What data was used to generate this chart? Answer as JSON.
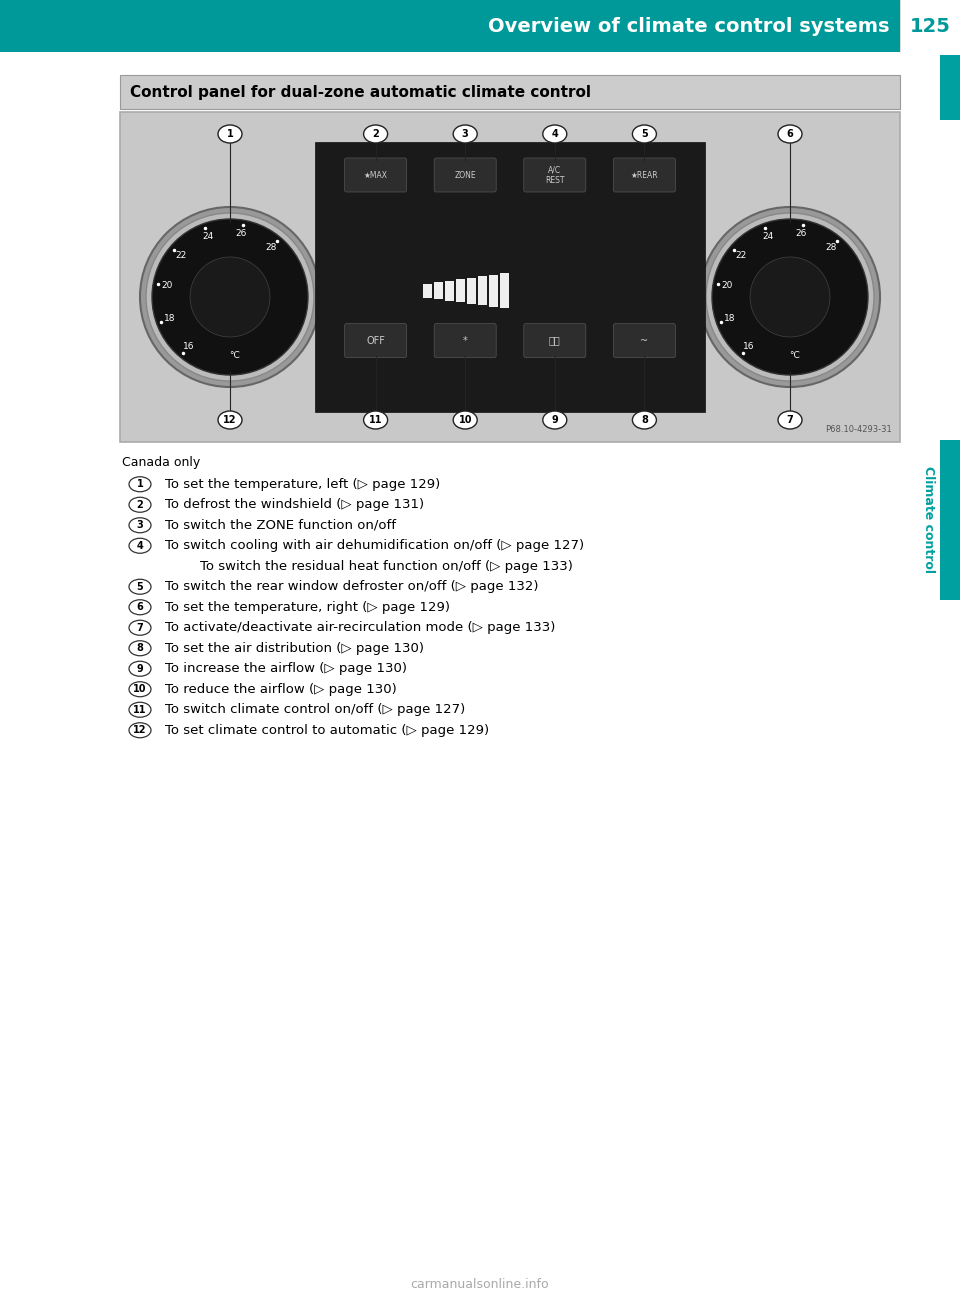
{
  "page_title": "Overview of climate control systems",
  "page_number": "125",
  "header_color": "#009999",
  "header_text_color": "#ffffff",
  "pn_bg": "#ffffff",
  "pn_text_color": "#00a0a0",
  "sidebar_color": "#00a0a0",
  "box_title": "Control panel for dual-zone automatic climate control",
  "box_title_bg": "#cccccc",
  "canada_only": "Canada only",
  "items": [
    {
      "num": "1",
      "text": "To set the temperature, left (▷ page 129)"
    },
    {
      "num": "2",
      "text": "To defrost the windshield (▷ page 131)"
    },
    {
      "num": "3",
      "text": "To switch the ZONE function on/off"
    },
    {
      "num": "4",
      "text": "To switch cooling with air dehumidification on/off (▷ page 127)",
      "subtext": "To switch the residual heat function on/off (▷ page 133)"
    },
    {
      "num": "5",
      "text": "To switch the rear window defroster on/off (▷ page 132)"
    },
    {
      "num": "6",
      "text": "To set the temperature, right (▷ page 129)"
    },
    {
      "num": "7",
      "text": "To activate/deactivate air-recirculation mode (▷ page 133)"
    },
    {
      "num": "8",
      "text": "To set the air distribution (▷ page 130)"
    },
    {
      "num": "9",
      "text": "To increase the airflow (▷ page 130)"
    },
    {
      "num": "10",
      "text": "To reduce the airflow (▷ page 130)"
    },
    {
      "num": "11",
      "text": "To switch climate control on/off (▷ page 127)"
    },
    {
      "num": "12",
      "text": "To set climate control to automatic (▷ page 129)"
    }
  ],
  "footer_text": "carmanualsonline.info",
  "img_bg": "#c8c8c8",
  "dial_outer_color": "#888888",
  "dial_ring_color": "#555555",
  "dial_inner_color": "#1c1c1c",
  "panel_color": "#1a1a1a",
  "btn_color": "#2a2a2a",
  "btn_label_color": "#bbbbbb"
}
